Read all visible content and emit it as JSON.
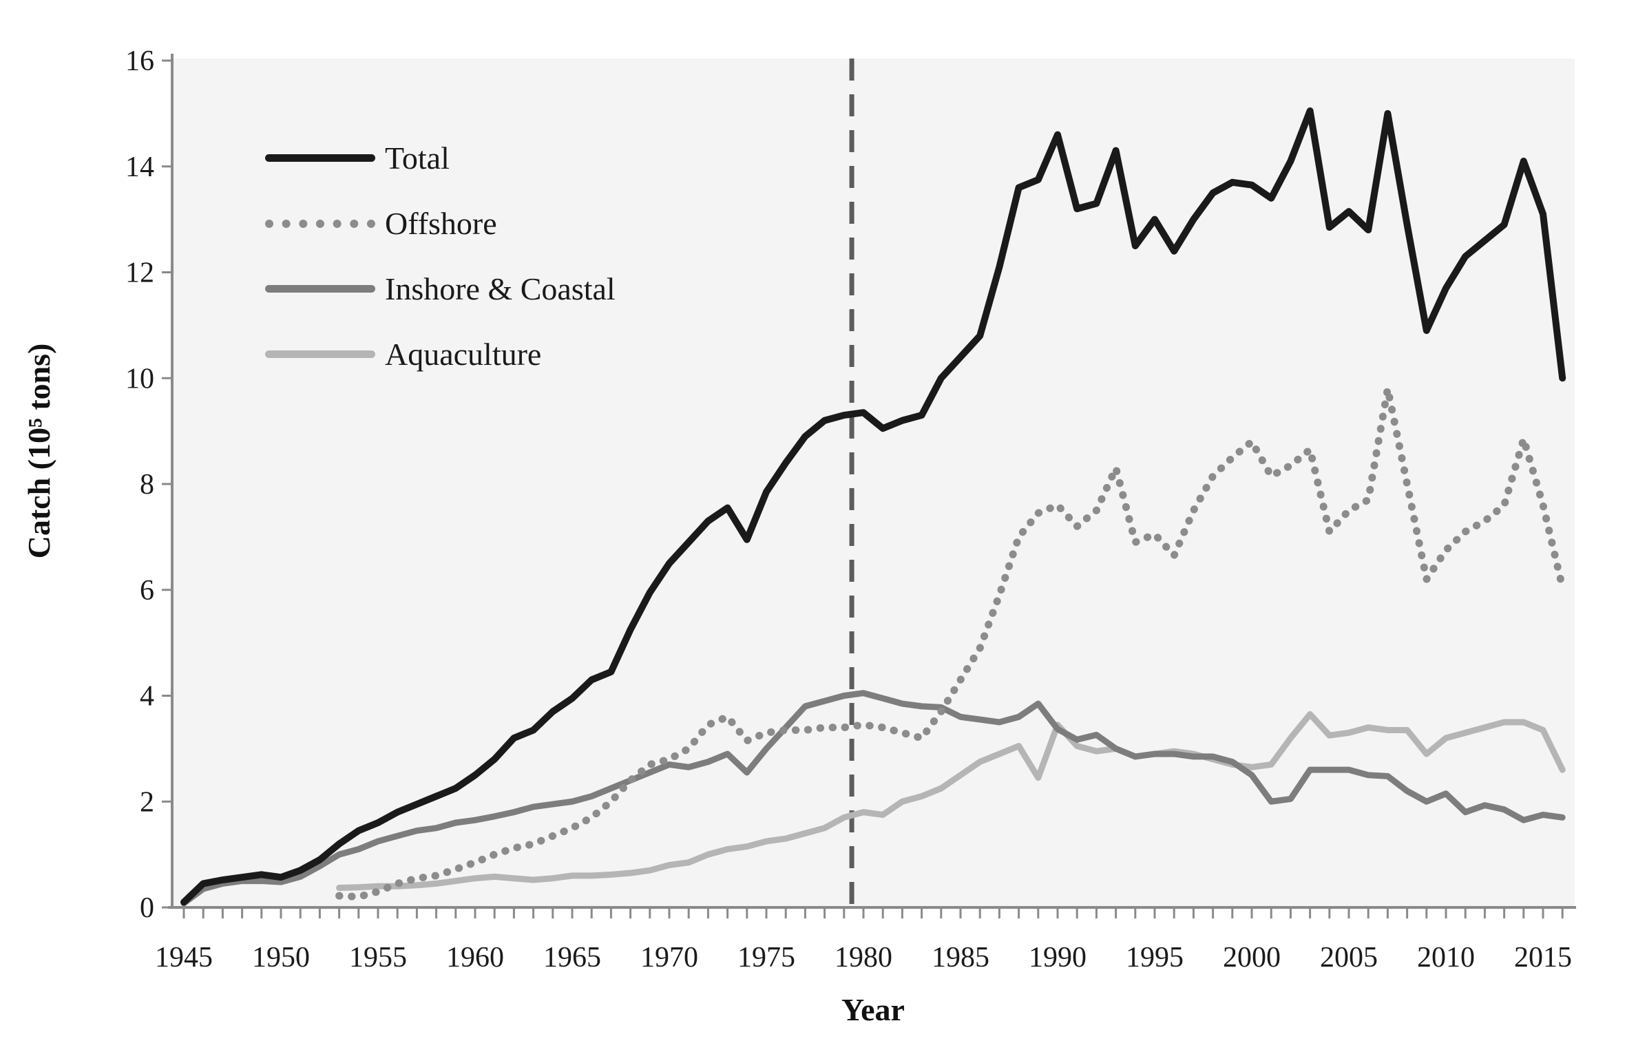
{
  "chart_data": {
    "type": "line",
    "title": "",
    "xlabel": "Year",
    "ylabel": "Catch (10⁵ tons)",
    "x_range": [
      1944.3,
      2016.7
    ],
    "ylim": [
      0,
      16
    ],
    "y_ticks": [
      0,
      2,
      4,
      6,
      8,
      10,
      12,
      14,
      16
    ],
    "x_labeled_ticks": [
      1945,
      1950,
      1955,
      1960,
      1965,
      1970,
      1975,
      1980,
      1985,
      1990,
      1995,
      2000,
      2005,
      2010,
      2015
    ],
    "x_minor_tick_step": 1,
    "x_minor_tick_range": [
      1945,
      2016
    ],
    "grid": false,
    "legend_position": "inside-top-left",
    "plot_bg": "#f4f4f4",
    "axis_color": "#8a8a8a",
    "text_color": "#1a1a1a",
    "annotations": [
      {
        "type": "vline-dashed",
        "x": 1979.4,
        "color": "#5c5c5c"
      }
    ],
    "series": [
      {
        "name": "Total",
        "line_style": "solid",
        "color": "#1a1a1a",
        "stroke_width": 10,
        "start_year": 1945,
        "step": 1,
        "values": [
          0.1,
          0.45,
          0.52,
          0.57,
          0.62,
          0.57,
          0.7,
          0.9,
          1.2,
          1.45,
          1.6,
          1.8,
          1.95,
          2.1,
          2.25,
          2.5,
          2.8,
          3.2,
          3.35,
          3.7,
          3.95,
          4.3,
          4.45,
          5.25,
          5.95,
          6.5,
          6.9,
          7.3,
          7.55,
          6.95,
          7.85,
          8.4,
          8.9,
          9.2,
          9.3,
          9.35,
          9.05,
          9.2,
          9.3,
          10.0,
          10.4,
          10.8,
          12.1,
          13.6,
          13.75,
          14.6,
          13.2,
          13.3,
          14.3,
          12.5,
          13.0,
          12.4,
          13.0,
          13.5,
          13.7,
          13.65,
          13.4,
          14.1,
          15.05,
          12.85,
          13.15,
          12.8,
          15.0,
          12.9,
          10.9,
          11.7,
          12.3,
          12.6,
          12.9,
          14.1,
          13.1,
          10.0
        ]
      },
      {
        "name": "Offshore",
        "line_style": "dotted",
        "color": "#8c8c8c",
        "stroke_width": 10,
        "start_year": 1953,
        "step": 1,
        "values": [
          0.22,
          0.2,
          0.3,
          0.45,
          0.55,
          0.6,
          0.72,
          0.85,
          1.0,
          1.12,
          1.2,
          1.35,
          1.5,
          1.7,
          2.0,
          2.4,
          2.7,
          2.8,
          3.0,
          3.45,
          3.6,
          3.15,
          3.3,
          3.35,
          3.35,
          3.4,
          3.4,
          3.45,
          3.4,
          3.3,
          3.2,
          3.7,
          4.3,
          4.9,
          5.9,
          7.0,
          7.45,
          7.6,
          7.2,
          7.5,
          8.3,
          6.9,
          7.05,
          6.65,
          7.5,
          8.15,
          8.5,
          8.8,
          8.15,
          8.35,
          8.65,
          7.1,
          7.5,
          7.7,
          9.8,
          8.0,
          6.2,
          6.75,
          7.1,
          7.3,
          7.6,
          8.85,
          7.6,
          6.05
        ]
      },
      {
        "name": "Inshore & Coastal",
        "line_style": "solid",
        "color": "#7d7d7d",
        "stroke_width": 9,
        "start_year": 1945,
        "step": 1,
        "values": [
          0.08,
          0.35,
          0.45,
          0.5,
          0.5,
          0.48,
          0.58,
          0.78,
          1.0,
          1.1,
          1.25,
          1.35,
          1.45,
          1.5,
          1.6,
          1.65,
          1.72,
          1.8,
          1.9,
          1.95,
          2.0,
          2.1,
          2.25,
          2.4,
          2.55,
          2.7,
          2.65,
          2.75,
          2.9,
          2.55,
          3.0,
          3.4,
          3.8,
          3.9,
          4.0,
          4.05,
          3.95,
          3.85,
          3.8,
          3.78,
          3.6,
          3.55,
          3.5,
          3.6,
          3.85,
          3.37,
          3.17,
          3.26,
          3.0,
          2.85,
          2.9,
          2.9,
          2.85,
          2.85,
          2.75,
          2.5,
          2.0,
          2.05,
          2.6,
          2.6,
          2.6,
          2.5,
          2.48,
          2.2,
          2.0,
          2.15,
          1.8,
          1.93,
          1.85,
          1.65,
          1.75,
          1.7
        ]
      },
      {
        "name": "Aquaculture",
        "line_style": "solid",
        "color": "#b5b5b5",
        "stroke_width": 9,
        "start_year": 1953,
        "step": 1,
        "values": [
          0.37,
          0.38,
          0.4,
          0.4,
          0.42,
          0.45,
          0.5,
          0.55,
          0.58,
          0.55,
          0.52,
          0.55,
          0.6,
          0.6,
          0.62,
          0.65,
          0.7,
          0.8,
          0.85,
          1.0,
          1.1,
          1.15,
          1.25,
          1.3,
          1.4,
          1.5,
          1.7,
          1.8,
          1.75,
          2.0,
          2.1,
          2.25,
          2.5,
          2.75,
          2.9,
          3.05,
          2.45,
          3.45,
          3.05,
          2.95,
          3.0,
          2.85,
          2.9,
          2.95,
          2.9,
          2.8,
          2.7,
          2.65,
          2.7,
          3.2,
          3.65,
          3.25,
          3.3,
          3.4,
          3.35,
          3.35,
          2.9,
          3.2,
          3.3,
          3.4,
          3.5,
          3.5,
          3.35,
          2.6
        ]
      }
    ]
  }
}
